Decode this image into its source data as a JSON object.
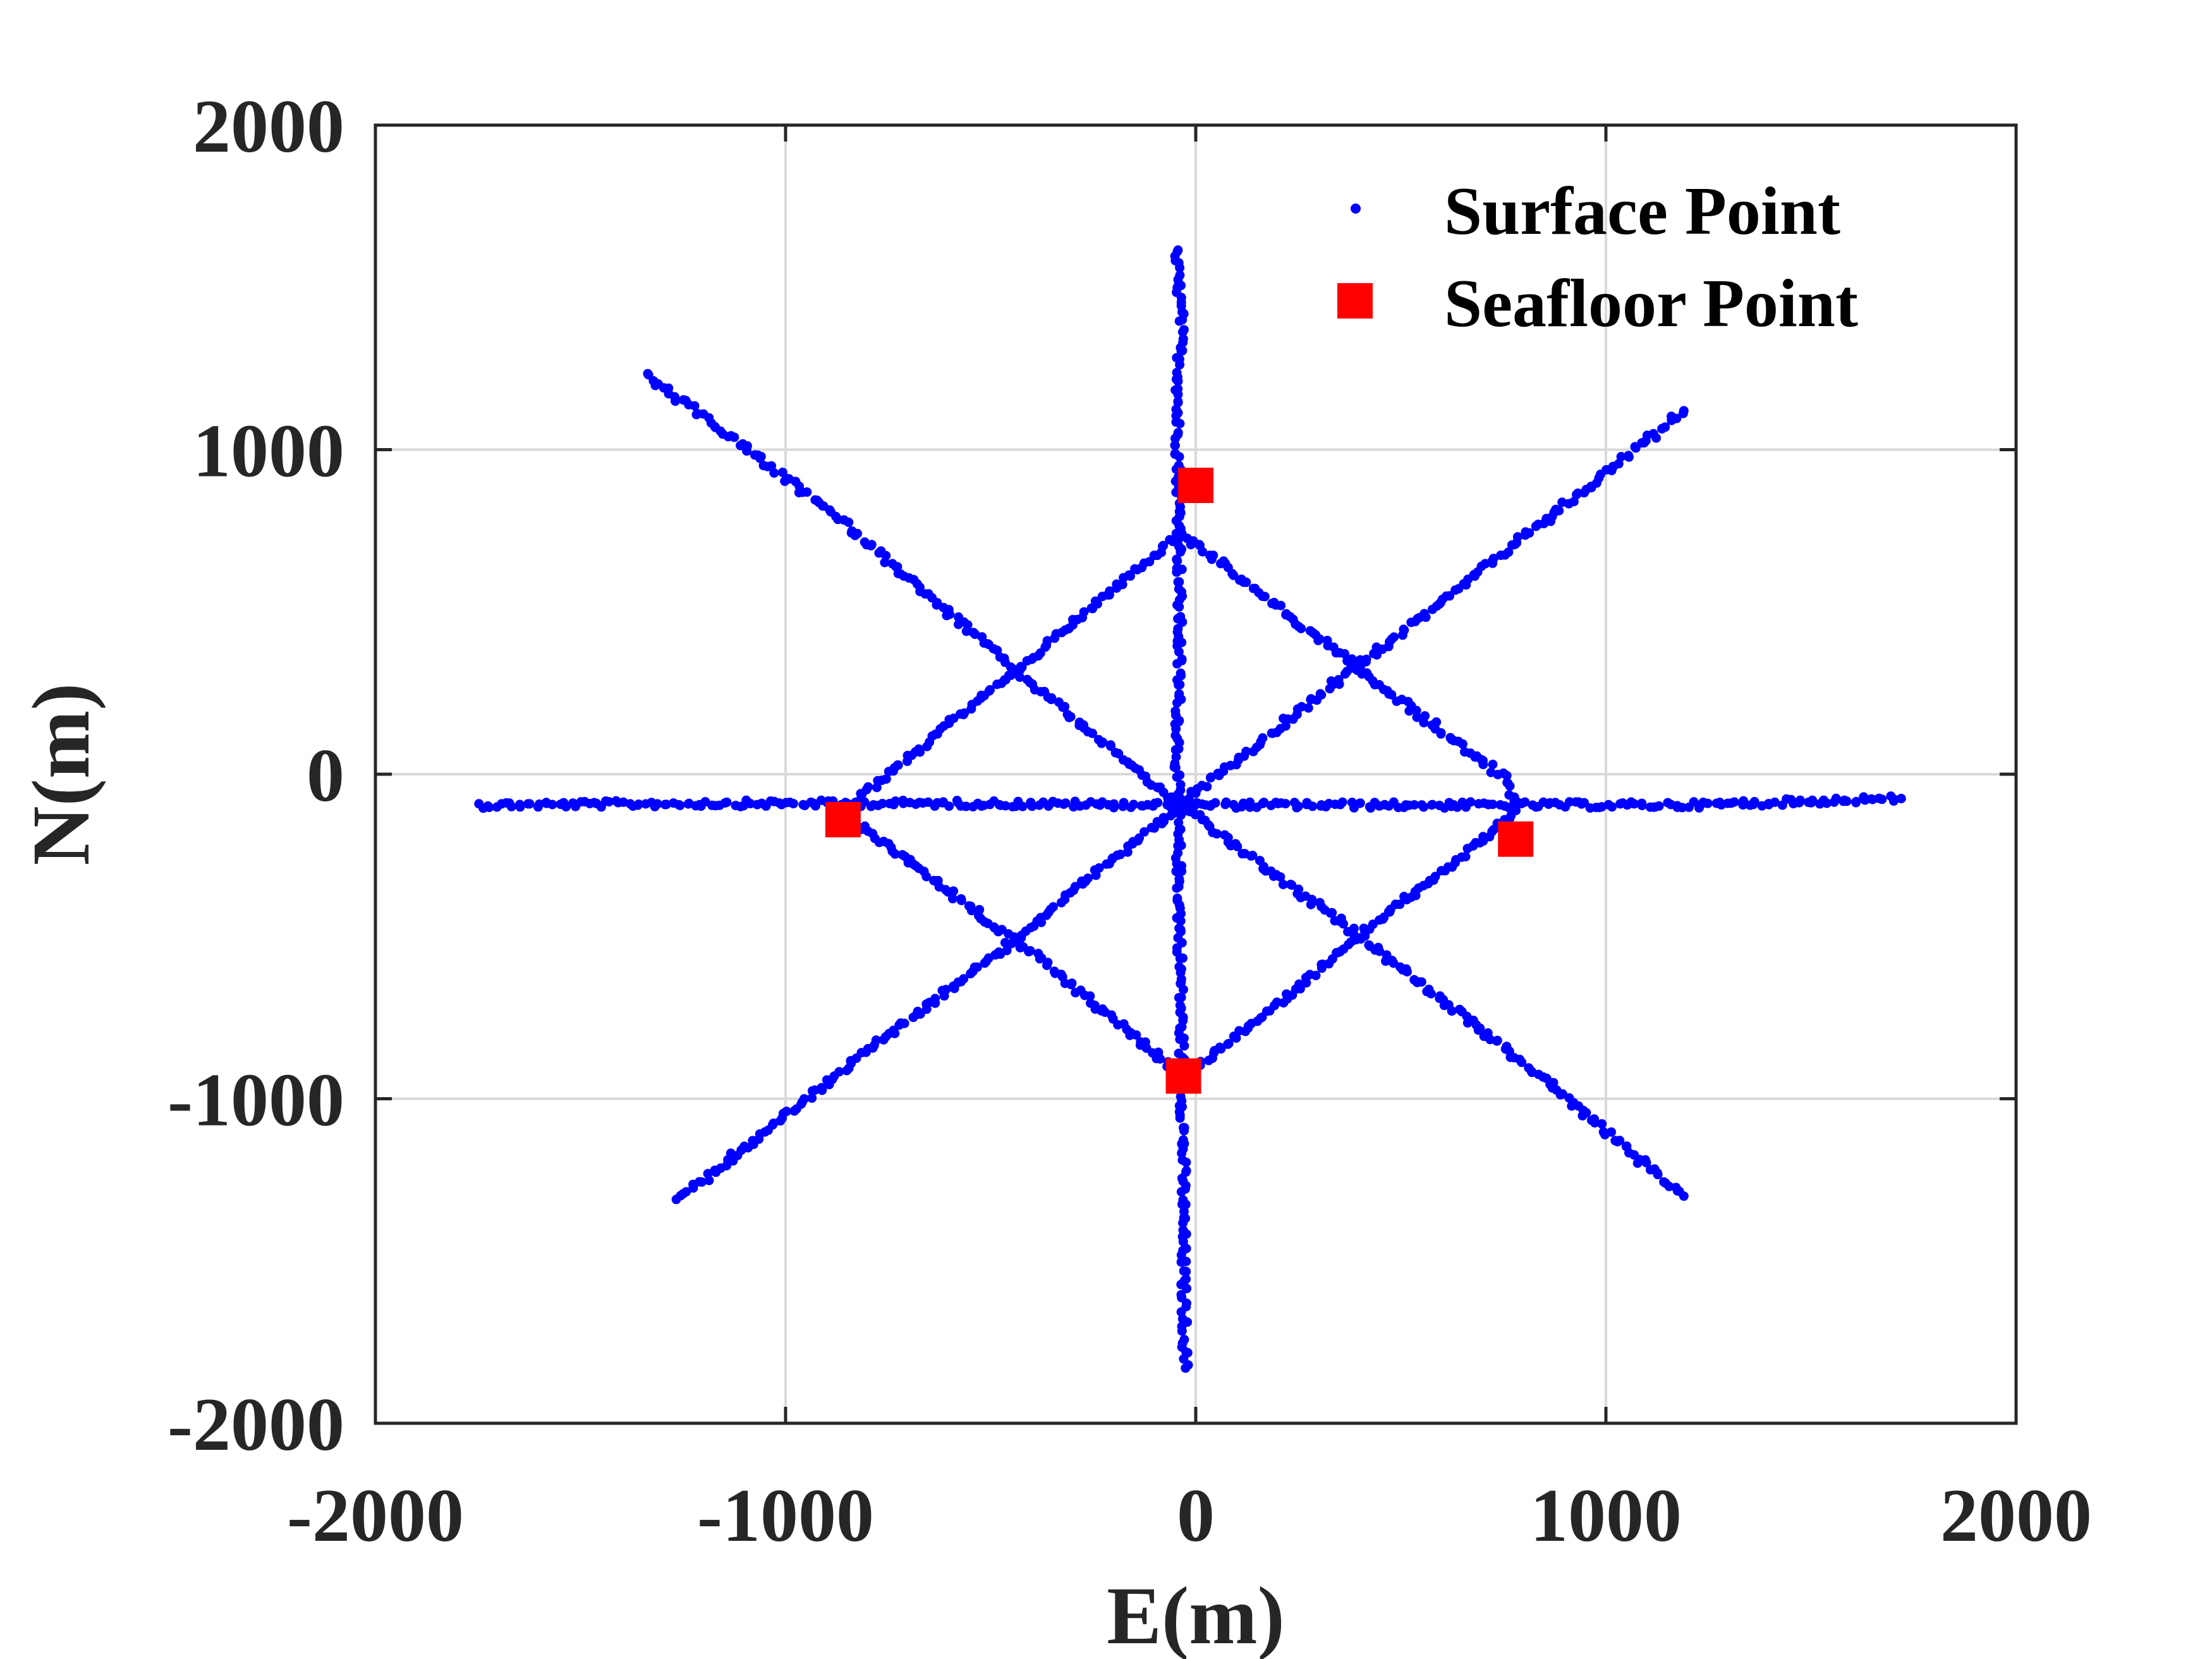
{
  "chart_data": {
    "type": "scatter",
    "title": "",
    "xlabel": "E(m)",
    "ylabel": "N(m)",
    "xlim": [
      -2000,
      2000
    ],
    "ylim": [
      -2000,
      2000
    ],
    "xticks": [
      "-2000",
      "-1000",
      "0",
      "1000",
      "2000"
    ],
    "yticks": [
      "-2000",
      "-1000",
      "0",
      "1000",
      "2000"
    ],
    "grid": true,
    "legend_position": "top-right",
    "series": [
      {
        "name": "Surface Point",
        "marker": "dot",
        "color": "#0000ff",
        "lines": [
          {
            "name": "east-west",
            "points": [
              [
                -1750,
                -95
              ],
              [
                -1200,
                -90
              ],
              [
                -600,
                -90
              ],
              [
                0,
                -95
              ],
              [
                600,
                -95
              ],
              [
                1200,
                -95
              ],
              [
                1720,
                -75
              ]
            ]
          },
          {
            "name": "north-south",
            "points": [
              [
                -50,
                1620
              ],
              [
                -35,
                1400
              ],
              [
                -45,
                1100
              ],
              [
                -40,
                800
              ],
              [
                -40,
                400
              ],
              [
                -45,
                0
              ],
              [
                -40,
                -400
              ],
              [
                -35,
                -800
              ],
              [
                -30,
                -1200
              ],
              [
                -30,
                -1550
              ],
              [
                -25,
                -1830
              ]
            ]
          },
          {
            "name": "northwest-southeast",
            "points": [
              [
                -1340,
                1230
              ],
              [
                -900,
                820
              ],
              [
                -440,
                320
              ],
              [
                -40,
                -95
              ],
              [
                400,
                -500
              ],
              [
                800,
                -890
              ],
              [
                1190,
                -1300
              ]
            ]
          },
          {
            "name": "southwest-northeast",
            "points": [
              [
                -1260,
                -1310
              ],
              [
                -850,
                -900
              ],
              [
                -440,
                -510
              ],
              [
                -40,
                -95
              ],
              [
                380,
                320
              ],
              [
                800,
                730
              ],
              [
                1190,
                1120
              ]
            ]
          },
          {
            "name": "loop-north-west",
            "points": [
              [
                -40,
                740
              ],
              [
                -440,
                320
              ],
              [
                -800,
                -50
              ],
              [
                -860,
                -120
              ]
            ]
          },
          {
            "name": "loop-north-east",
            "points": [
              [
                -30,
                740
              ],
              [
                390,
                330
              ],
              [
                760,
                -20
              ],
              [
                780,
                -100
              ]
            ]
          },
          {
            "name": "loop-south-east",
            "points": [
              [
                780,
                -110
              ],
              [
                680,
                -220
              ],
              [
                400,
                -500
              ],
              [
                0,
                -910
              ],
              [
                -40,
                -910
              ]
            ]
          },
          {
            "name": "loop-south-west",
            "points": [
              [
                -850,
                -130
              ],
              [
                -440,
                -510
              ],
              [
                -40,
                -920
              ]
            ]
          }
        ]
      },
      {
        "name": "Seafloor Point",
        "marker": "square",
        "color": "#ff0000",
        "points": [
          [
            0,
            890
          ],
          [
            -860,
            -140
          ],
          [
            780,
            -200
          ],
          [
            -30,
            -930
          ]
        ]
      }
    ]
  }
}
